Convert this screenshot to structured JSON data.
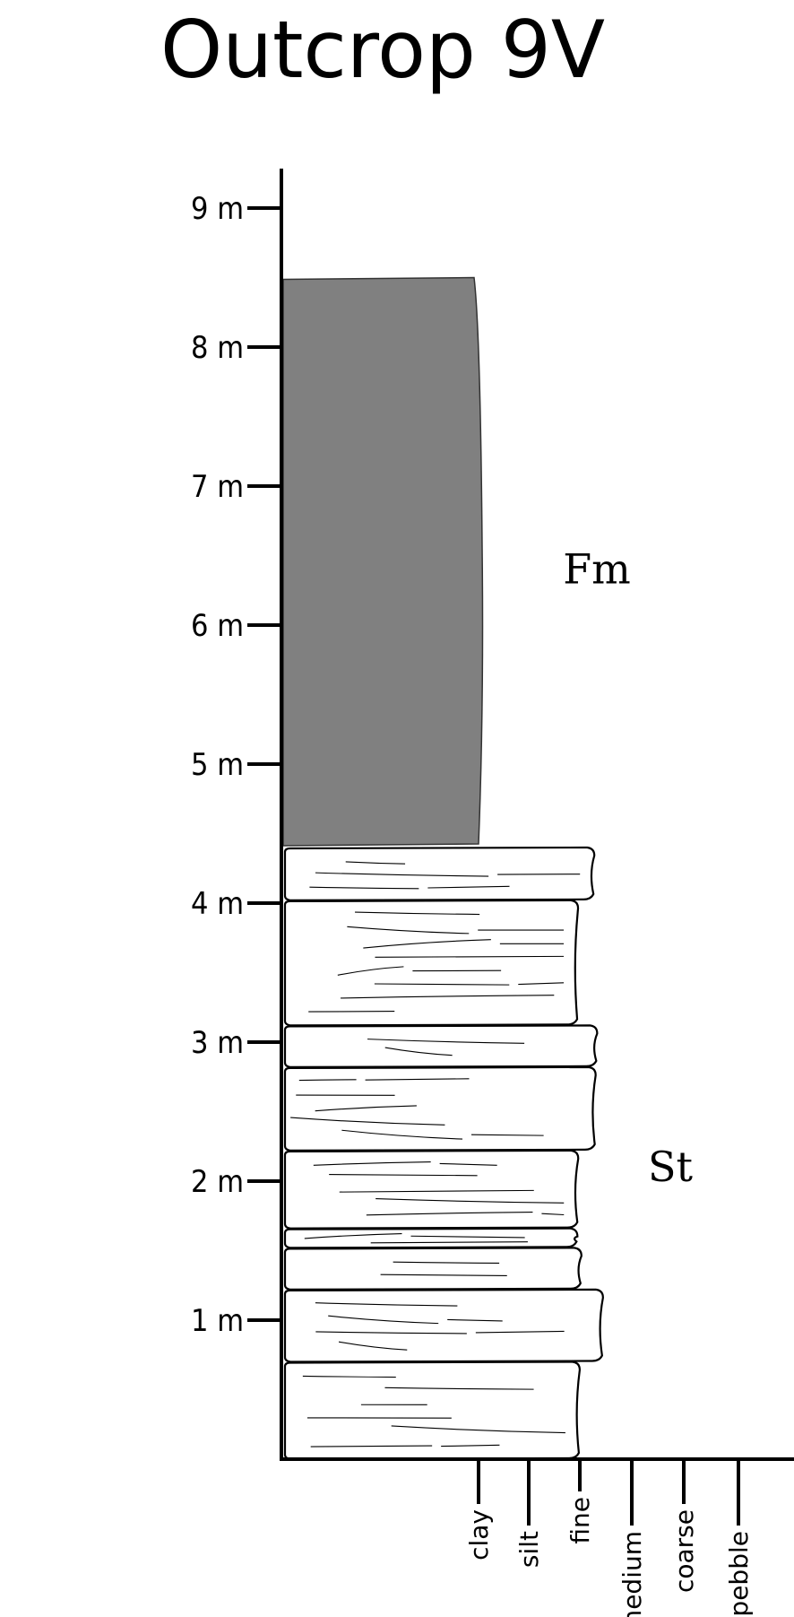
{
  "title": "Outcrop 9V",
  "depth_axis": {
    "unit": "m",
    "ticks": [
      "1 m",
      "2 m",
      "3 m",
      "4 m",
      "5 m",
      "6 m",
      "7 m",
      "8 m",
      "9 m"
    ]
  },
  "grain_axis": {
    "labels": [
      "clay",
      "silt",
      "fine",
      "medium",
      "coarse",
      "pebble"
    ]
  },
  "units": [
    {
      "label": "St",
      "bottom_m": 0.0,
      "top_m": 4.4,
      "grain": "fine",
      "fill": "#ffffff",
      "beds": [
        {
          "bottom_m": 0.0,
          "top_m": 0.7,
          "grain": "fine"
        },
        {
          "bottom_m": 0.7,
          "top_m": 1.22,
          "grain": "fine-medium"
        },
        {
          "bottom_m": 1.22,
          "top_m": 1.52,
          "grain": "fine"
        },
        {
          "bottom_m": 1.52,
          "top_m": 1.66,
          "grain": "fine"
        },
        {
          "bottom_m": 1.66,
          "top_m": 2.22,
          "grain": "fine"
        },
        {
          "bottom_m": 2.22,
          "top_m": 2.82,
          "grain": "fine-medium"
        },
        {
          "bottom_m": 2.82,
          "top_m": 3.12,
          "grain": "fine-medium"
        },
        {
          "bottom_m": 3.12,
          "top_m": 4.02,
          "grain": "fine"
        },
        {
          "bottom_m": 4.02,
          "top_m": 4.4,
          "grain": "fine-medium"
        }
      ]
    },
    {
      "label": "Fm",
      "bottom_m": 4.4,
      "top_m": 8.5,
      "grain": "silt",
      "fill": "#808080"
    }
  ]
}
